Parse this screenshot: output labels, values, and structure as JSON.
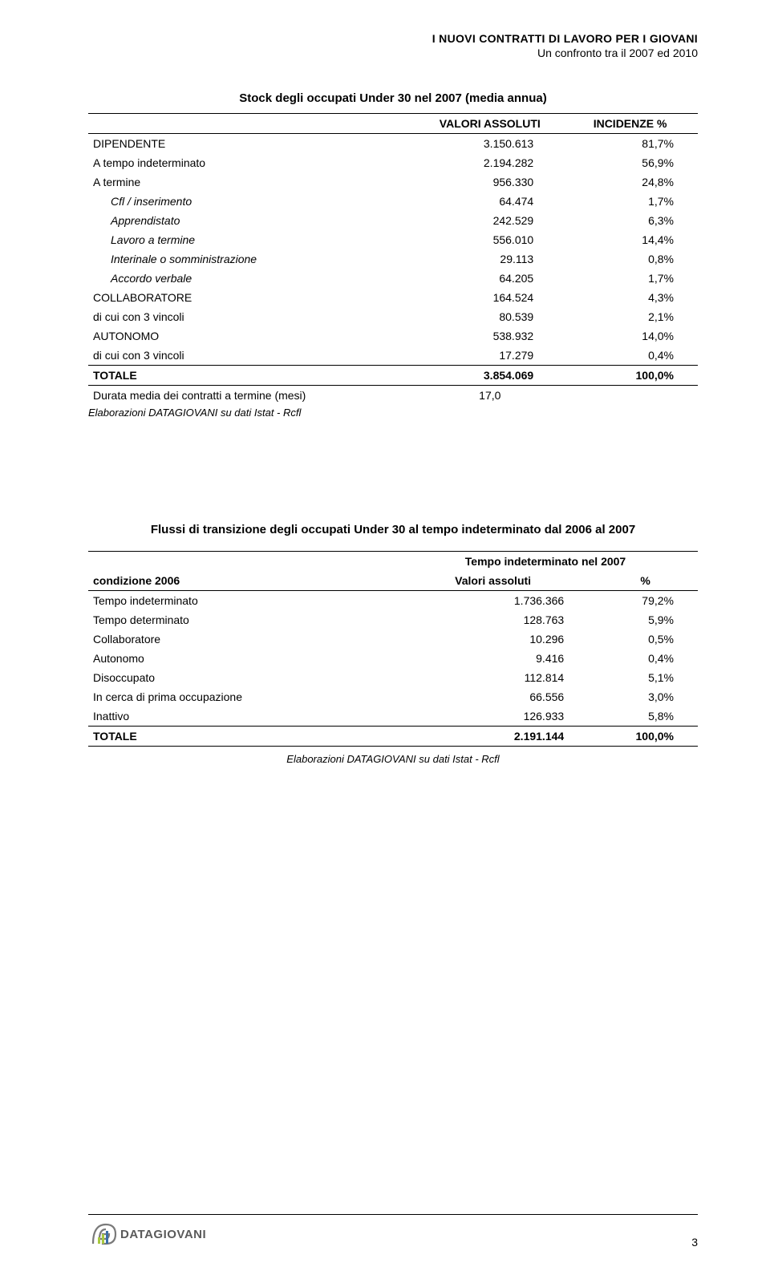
{
  "header": {
    "line1": "I NUOVI CONTRATTI DI LAVORO PER I GIOVANI",
    "line2": "Un confronto tra il 2007 ed 2010"
  },
  "table1": {
    "title": "Stock degli occupati Under 30 nel 2007 (media annua)",
    "col_headers": [
      "",
      "VALORI ASSOLUTI",
      "INCIDENZE %"
    ],
    "rows": [
      {
        "label": "DIPENDENTE",
        "v1": "3.150.613",
        "v2": "81,7%",
        "indent": false
      },
      {
        "label": "A tempo indeterminato",
        "v1": "2.194.282",
        "v2": "56,9%",
        "indent": false
      },
      {
        "label": "A termine",
        "v1": "956.330",
        "v2": "24,8%",
        "indent": false
      },
      {
        "label": "Cfl / inserimento",
        "v1": "64.474",
        "v2": "1,7%",
        "indent": true
      },
      {
        "label": "Apprendistato",
        "v1": "242.529",
        "v2": "6,3%",
        "indent": true
      },
      {
        "label": "Lavoro a termine",
        "v1": "556.010",
        "v2": "14,4%",
        "indent": true
      },
      {
        "label": "Interinale o somministrazione",
        "v1": "29.113",
        "v2": "0,8%",
        "indent": true
      },
      {
        "label": "Accordo verbale",
        "v1": "64.205",
        "v2": "1,7%",
        "indent": true
      },
      {
        "label": "COLLABORATORE",
        "v1": "164.524",
        "v2": "4,3%",
        "indent": false
      },
      {
        "label": "di cui con 3 vincoli",
        "v1": "80.539",
        "v2": "2,1%",
        "indent": false
      },
      {
        "label": "AUTONOMO",
        "v1": "538.932",
        "v2": "14,0%",
        "indent": false
      },
      {
        "label": "di cui con 3 vincoli",
        "v1": "17.279",
        "v2": "0,4%",
        "indent": false
      }
    ],
    "total": {
      "label": "TOTALE",
      "v1": "3.854.069",
      "v2": "100,0%"
    },
    "extra": {
      "label": "Durata media dei contratti a termine (mesi)",
      "v1": "17,0",
      "v2": ""
    },
    "source": "Elaborazioni DATAGIOVANI su dati Istat - Rcfl"
  },
  "table2": {
    "title": "Flussi di transizione degli occupati Under 30 al tempo indeterminato dal 2006 al 2007",
    "super_header": "Tempo indeterminato nel 2007",
    "corner_label": "condizione 2006",
    "sub_headers": [
      "Valori assoluti",
      "%"
    ],
    "rows": [
      {
        "label": "Tempo indeterminato",
        "v1": "1.736.366",
        "v2": "79,2%"
      },
      {
        "label": "Tempo determinato",
        "v1": "128.763",
        "v2": "5,9%"
      },
      {
        "label": "Collaboratore",
        "v1": "10.296",
        "v2": "0,5%"
      },
      {
        "label": "Autonomo",
        "v1": "9.416",
        "v2": "0,4%"
      },
      {
        "label": "Disoccupato",
        "v1": "112.814",
        "v2": "5,1%"
      },
      {
        "label": "In cerca di prima occupazione",
        "v1": "66.556",
        "v2": "3,0%"
      },
      {
        "label": "Inattivo",
        "v1": "126.933",
        "v2": "5,8%"
      }
    ],
    "total": {
      "label": "TOTALE",
      "v1": "2.191.144",
      "v2": "100,0%"
    },
    "source": "Elaborazioni DATAGIOVANI su dati Istat - Rcfl"
  },
  "footer": {
    "logo_text": "DATAGIOVANI",
    "page_number": "3"
  },
  "colors": {
    "text": "#000000",
    "logo_green": "#a8c93f",
    "logo_gray": "#7a7a7a",
    "logo_blue": "#3b6fa8"
  }
}
